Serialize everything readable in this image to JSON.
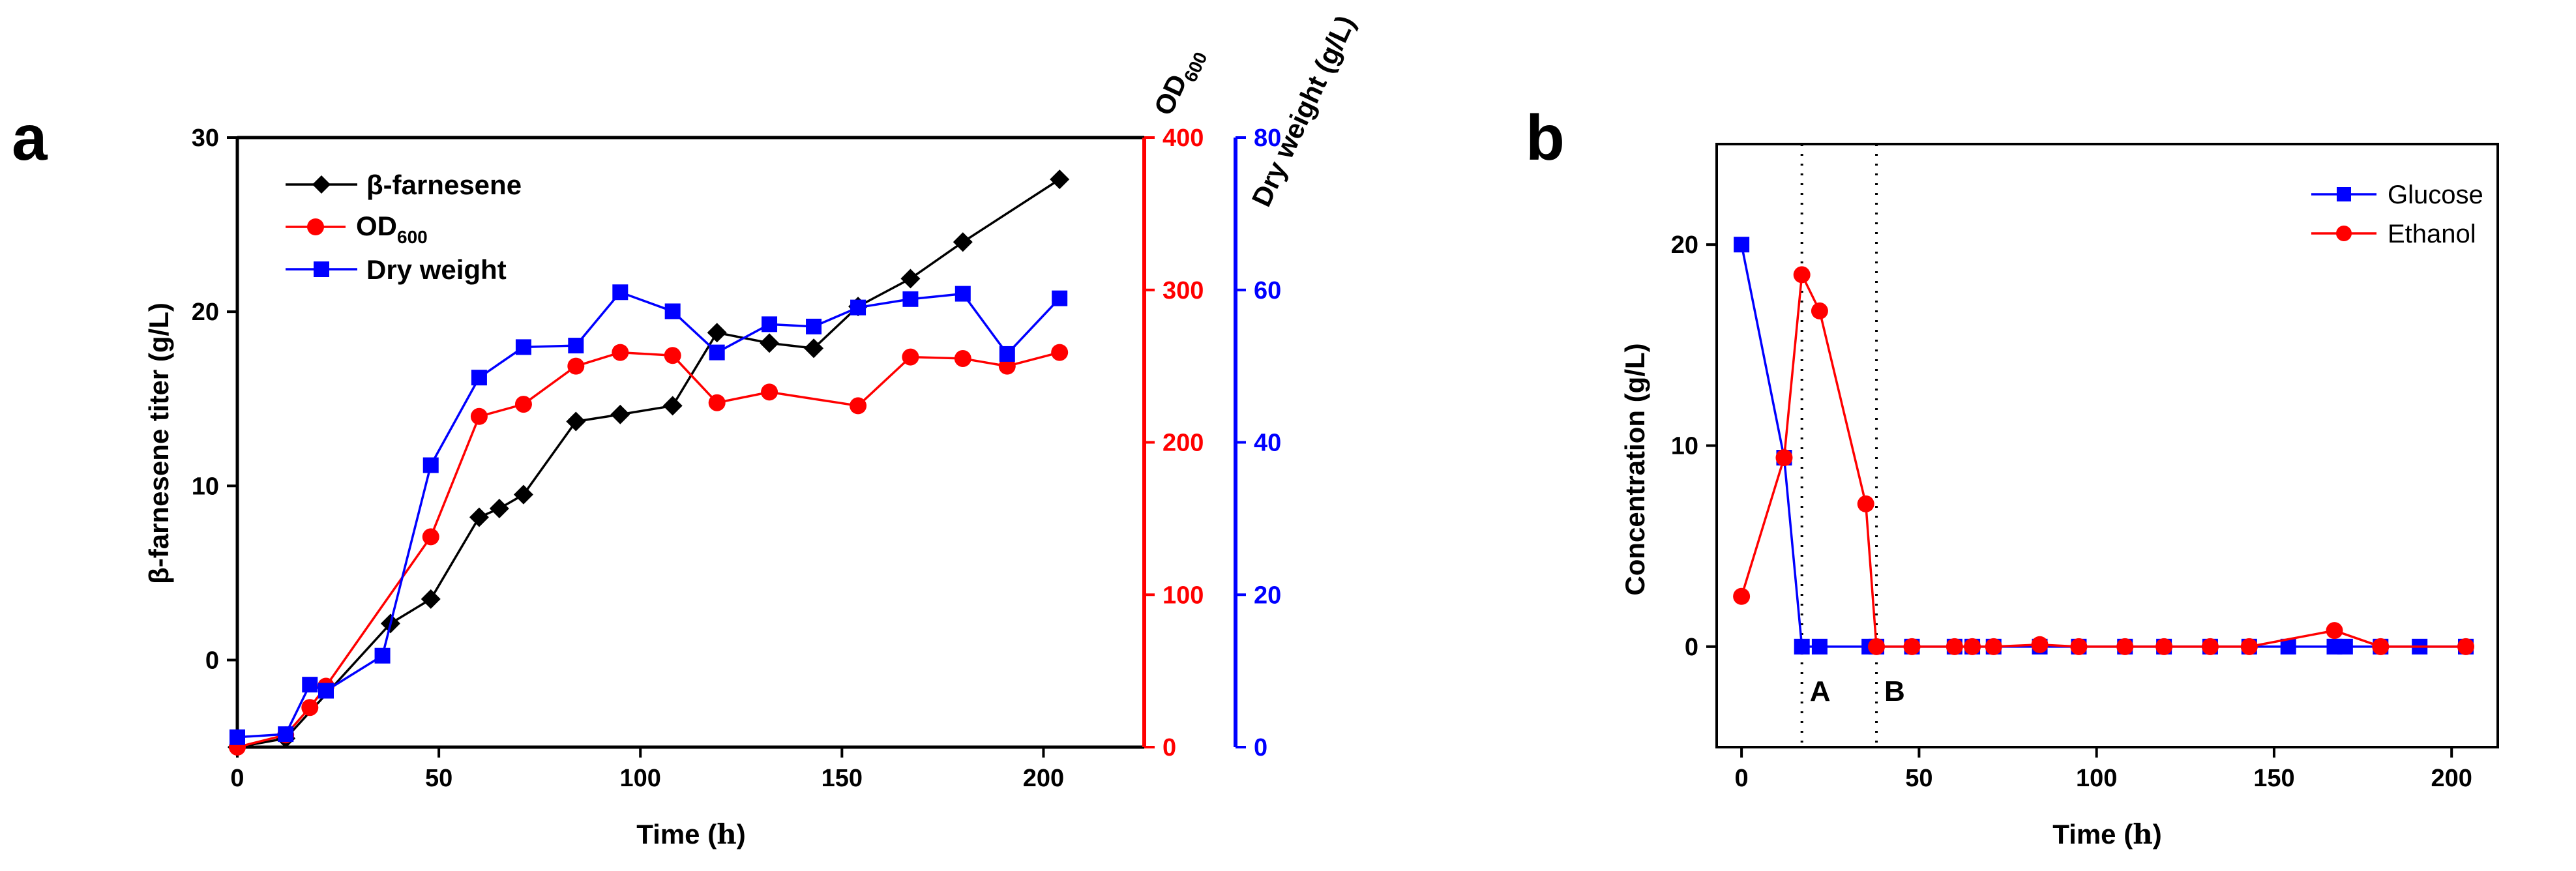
{
  "chart_data": [
    {
      "panel": "a",
      "type": "line",
      "xlabel_main": "Time",
      "xlabel_unit": "h",
      "xlim": [
        0,
        225
      ],
      "xticks": [
        "0",
        "50",
        "100",
        "150",
        "200"
      ],
      "ylabel_left": "β-farnesene titer (g/L)",
      "ylim_left": [
        -5,
        30
      ],
      "yticks_left": [
        "0",
        "10",
        "20",
        "30"
      ],
      "ylabel_right1_main": "OD",
      "ylabel_right1_sub": "600",
      "ylim_right1": [
        0,
        400
      ],
      "yticks_right1": [
        "0",
        "100",
        "200",
        "300",
        "400"
      ],
      "ylabel_right2": "Dry weight (g/L)",
      "ylim_right2": [
        0,
        80
      ],
      "yticks_right2": [
        "0",
        "20",
        "40",
        "60",
        "80"
      ],
      "legend_position": "top-left",
      "series": [
        {
          "name": "β-farnesene",
          "axis": "left",
          "color": "#000000",
          "marker": "diamond",
          "x": [
            0,
            12,
            38,
            48,
            60,
            65,
            71,
            84,
            95,
            108,
            119,
            132,
            143,
            154,
            167,
            180,
            204
          ],
          "y": [
            -5,
            -4.5,
            2.1,
            3.5,
            8.2,
            8.7,
            9.5,
            13.7,
            14.1,
            14.6,
            18.8,
            18.2,
            17.9,
            20.3,
            21.9,
            24.0,
            27.6
          ]
        },
        {
          "name": "OD",
          "name_sub": "600",
          "axis": "right1",
          "color": "#ff0000",
          "marker": "circle",
          "x": [
            0,
            12,
            18,
            22,
            48,
            60,
            71,
            84,
            95,
            108,
            119,
            132,
            154,
            167,
            180,
            191,
            204
          ],
          "y": [
            0,
            8,
            26,
            40,
            138,
            217,
            225,
            250,
            259,
            257,
            226,
            233,
            224,
            256,
            255,
            250,
            259
          ]
        },
        {
          "name": "Dry weight",
          "axis": "right2",
          "color": "#0000ff",
          "marker": "square",
          "x": [
            0,
            12,
            18,
            22,
            36,
            48,
            60,
            71,
            84,
            95,
            108,
            119,
            132,
            143,
            154,
            167,
            180,
            191,
            204
          ],
          "y": [
            1.3,
            1.7,
            8.2,
            7.4,
            12,
            37,
            48.5,
            52.5,
            52.7,
            59.7,
            57.2,
            51.8,
            55.5,
            55.2,
            57.7,
            58.8,
            59.5,
            51.6,
            58.9
          ]
        }
      ]
    },
    {
      "panel": "b",
      "type": "line",
      "xlabel_main": "Time",
      "xlabel_unit": "h",
      "xlim": [
        -7,
        213
      ],
      "xticks": [
        "0",
        "50",
        "100",
        "150",
        "200"
      ],
      "ylabel": "Concentration (g/L)",
      "ylim": [
        -5,
        25
      ],
      "yticks": [
        "0",
        "10",
        "20"
      ],
      "legend_position": "top-right",
      "annotations": [
        {
          "label": "A",
          "x": 17
        },
        {
          "label": "B",
          "x": 38
        }
      ],
      "series": [
        {
          "name": "Glucose",
          "color": "#0000ff",
          "marker": "square",
          "x": [
            0,
            12,
            17,
            22,
            36,
            38,
            48,
            60,
            65,
            71,
            84,
            95,
            108,
            119,
            132,
            143,
            154,
            167,
            170,
            180,
            191,
            204
          ],
          "y": [
            20,
            9.4,
            0,
            0,
            0,
            0,
            0,
            0,
            0,
            0,
            0,
            0,
            0,
            0,
            0,
            0,
            0,
            0,
            0,
            0,
            0,
            0
          ]
        },
        {
          "name": "Ethanol",
          "color": "#ff0000",
          "marker": "circle",
          "x": [
            0,
            12,
            17,
            22,
            35,
            38,
            48,
            60,
            65,
            71,
            84,
            95,
            108,
            119,
            132,
            143,
            167,
            180,
            204
          ],
          "y": [
            2.5,
            9.4,
            18.5,
            16.7,
            7.1,
            0,
            0,
            0,
            0,
            0,
            0.1,
            0,
            0,
            0,
            0,
            0,
            0.8,
            0,
            0
          ]
        }
      ]
    }
  ]
}
